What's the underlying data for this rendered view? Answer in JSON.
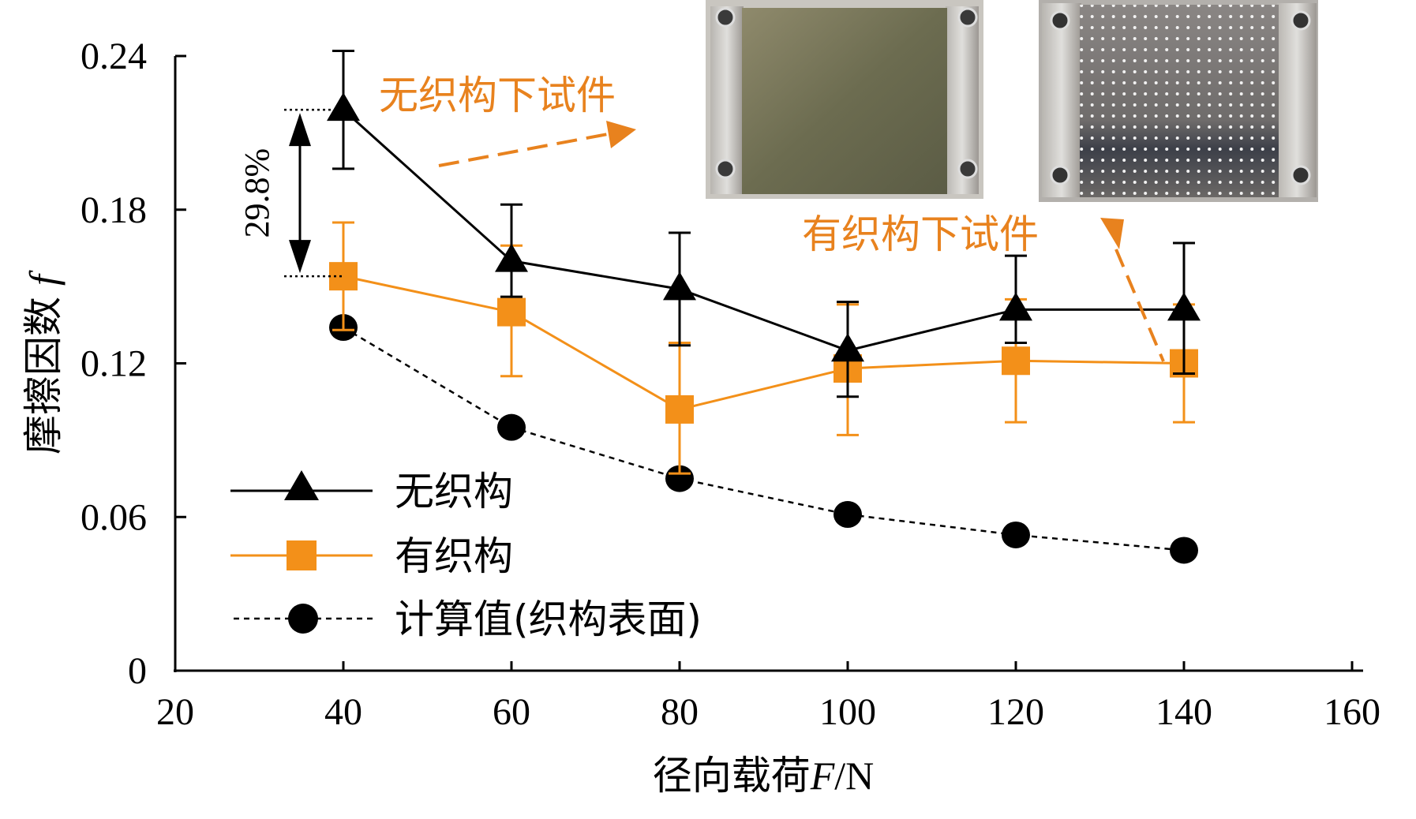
{
  "colors": {
    "untextured": "#000000",
    "textured": "#f39019",
    "calculated": "#000000",
    "annotation": "#e8821e"
  },
  "chart_data": {
    "type": "line",
    "x": [
      40,
      60,
      80,
      100,
      120,
      140
    ],
    "xlim": [
      20,
      160
    ],
    "ylim": [
      0,
      0.24
    ],
    "xticks": [
      "20",
      "40",
      "60",
      "80",
      "100",
      "120",
      "140",
      "160"
    ],
    "yticks": [
      "0",
      "0.06",
      "0.12",
      "0.18",
      "0.24"
    ],
    "xlabel": "径向载荷",
    "xlabel_var": "F",
    "xlabel_unit": "/N",
    "ylabel": "摩擦因数",
    "ylabel_var": "f",
    "legend_position": "bottom-left",
    "series": [
      {
        "name": "无织构",
        "marker": "triangle",
        "line": "solid",
        "values": [
          0.219,
          0.16,
          0.149,
          0.125,
          0.141,
          0.141
        ],
        "err_low": [
          0.196,
          0.146,
          0.127,
          0.107,
          0.128,
          0.116
        ],
        "err_high": [
          0.242,
          0.182,
          0.171,
          0.144,
          0.162,
          0.167
        ]
      },
      {
        "name": "有织构",
        "marker": "square",
        "line": "solid",
        "values": [
          0.154,
          0.14,
          0.102,
          0.118,
          0.121,
          0.12
        ],
        "err_low": [
          0.133,
          0.115,
          0.077,
          0.092,
          0.097,
          0.097
        ],
        "err_high": [
          0.175,
          0.166,
          0.128,
          0.143,
          0.145,
          0.143
        ]
      },
      {
        "name": "计算值(织构表面)",
        "marker": "circle",
        "line": "dashed",
        "values": [
          0.134,
          0.095,
          0.075,
          0.061,
          0.053,
          0.047
        ]
      }
    ],
    "annotations": {
      "difference_label": "29.8%",
      "difference_between": [
        0.219,
        0.154
      ],
      "untextured_sample_label": "无织构下试件",
      "textured_sample_label": "有织构下试件"
    }
  }
}
